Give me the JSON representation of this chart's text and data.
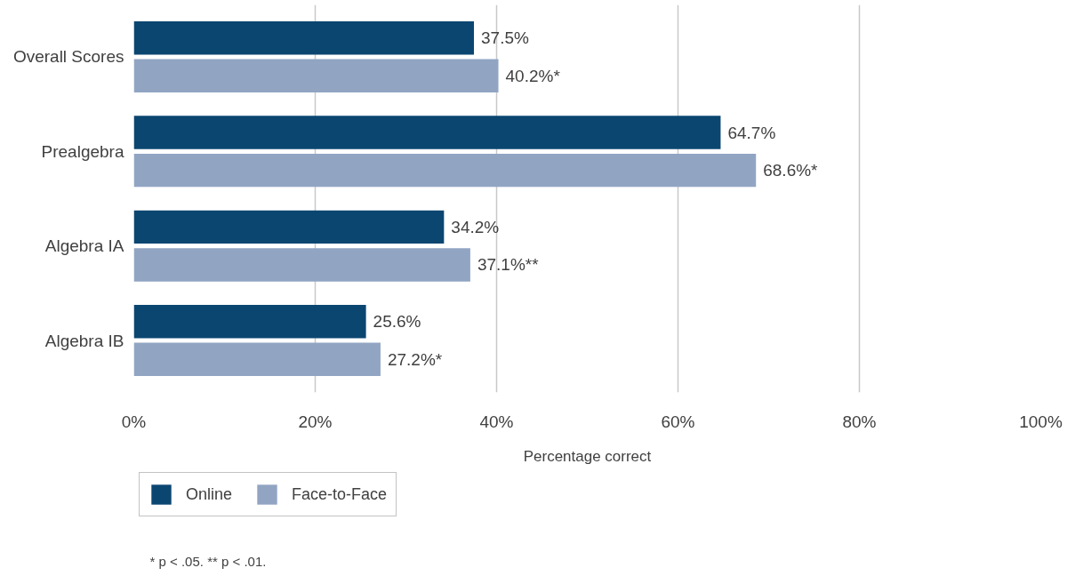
{
  "chart_data": {
    "type": "bar",
    "orientation": "horizontal",
    "categories": [
      "Overall Scores",
      "Prealgebra",
      "Algebra IA",
      "Algebra IB"
    ],
    "xlabel": "Percentage correct",
    "xlim": [
      0,
      100
    ],
    "xticks": [
      {
        "value": 0,
        "label": "0%"
      },
      {
        "value": 20,
        "label": "20%"
      },
      {
        "value": 40,
        "label": "40%"
      },
      {
        "value": 60,
        "label": "60%"
      },
      {
        "value": 80,
        "label": "80%"
      },
      {
        "value": 100,
        "label": "100%"
      }
    ],
    "series": [
      {
        "name": "Online",
        "color": "#0b4671",
        "values": [
          37.5,
          64.7,
          34.2,
          25.6
        ],
        "value_labels": [
          "37.5%",
          "64.7%",
          "34.2%",
          "25.6%"
        ]
      },
      {
        "name": "Face-to-Face",
        "color": "#91a5c3",
        "values": [
          40.2,
          68.6,
          37.1,
          27.2
        ],
        "value_labels": [
          "40.2%*",
          "68.6%*",
          "37.1%**",
          "27.2%*"
        ]
      }
    ],
    "grid": "x",
    "legend": "bottom",
    "annotations": [
      "* p < .05. ** p < .01."
    ]
  }
}
